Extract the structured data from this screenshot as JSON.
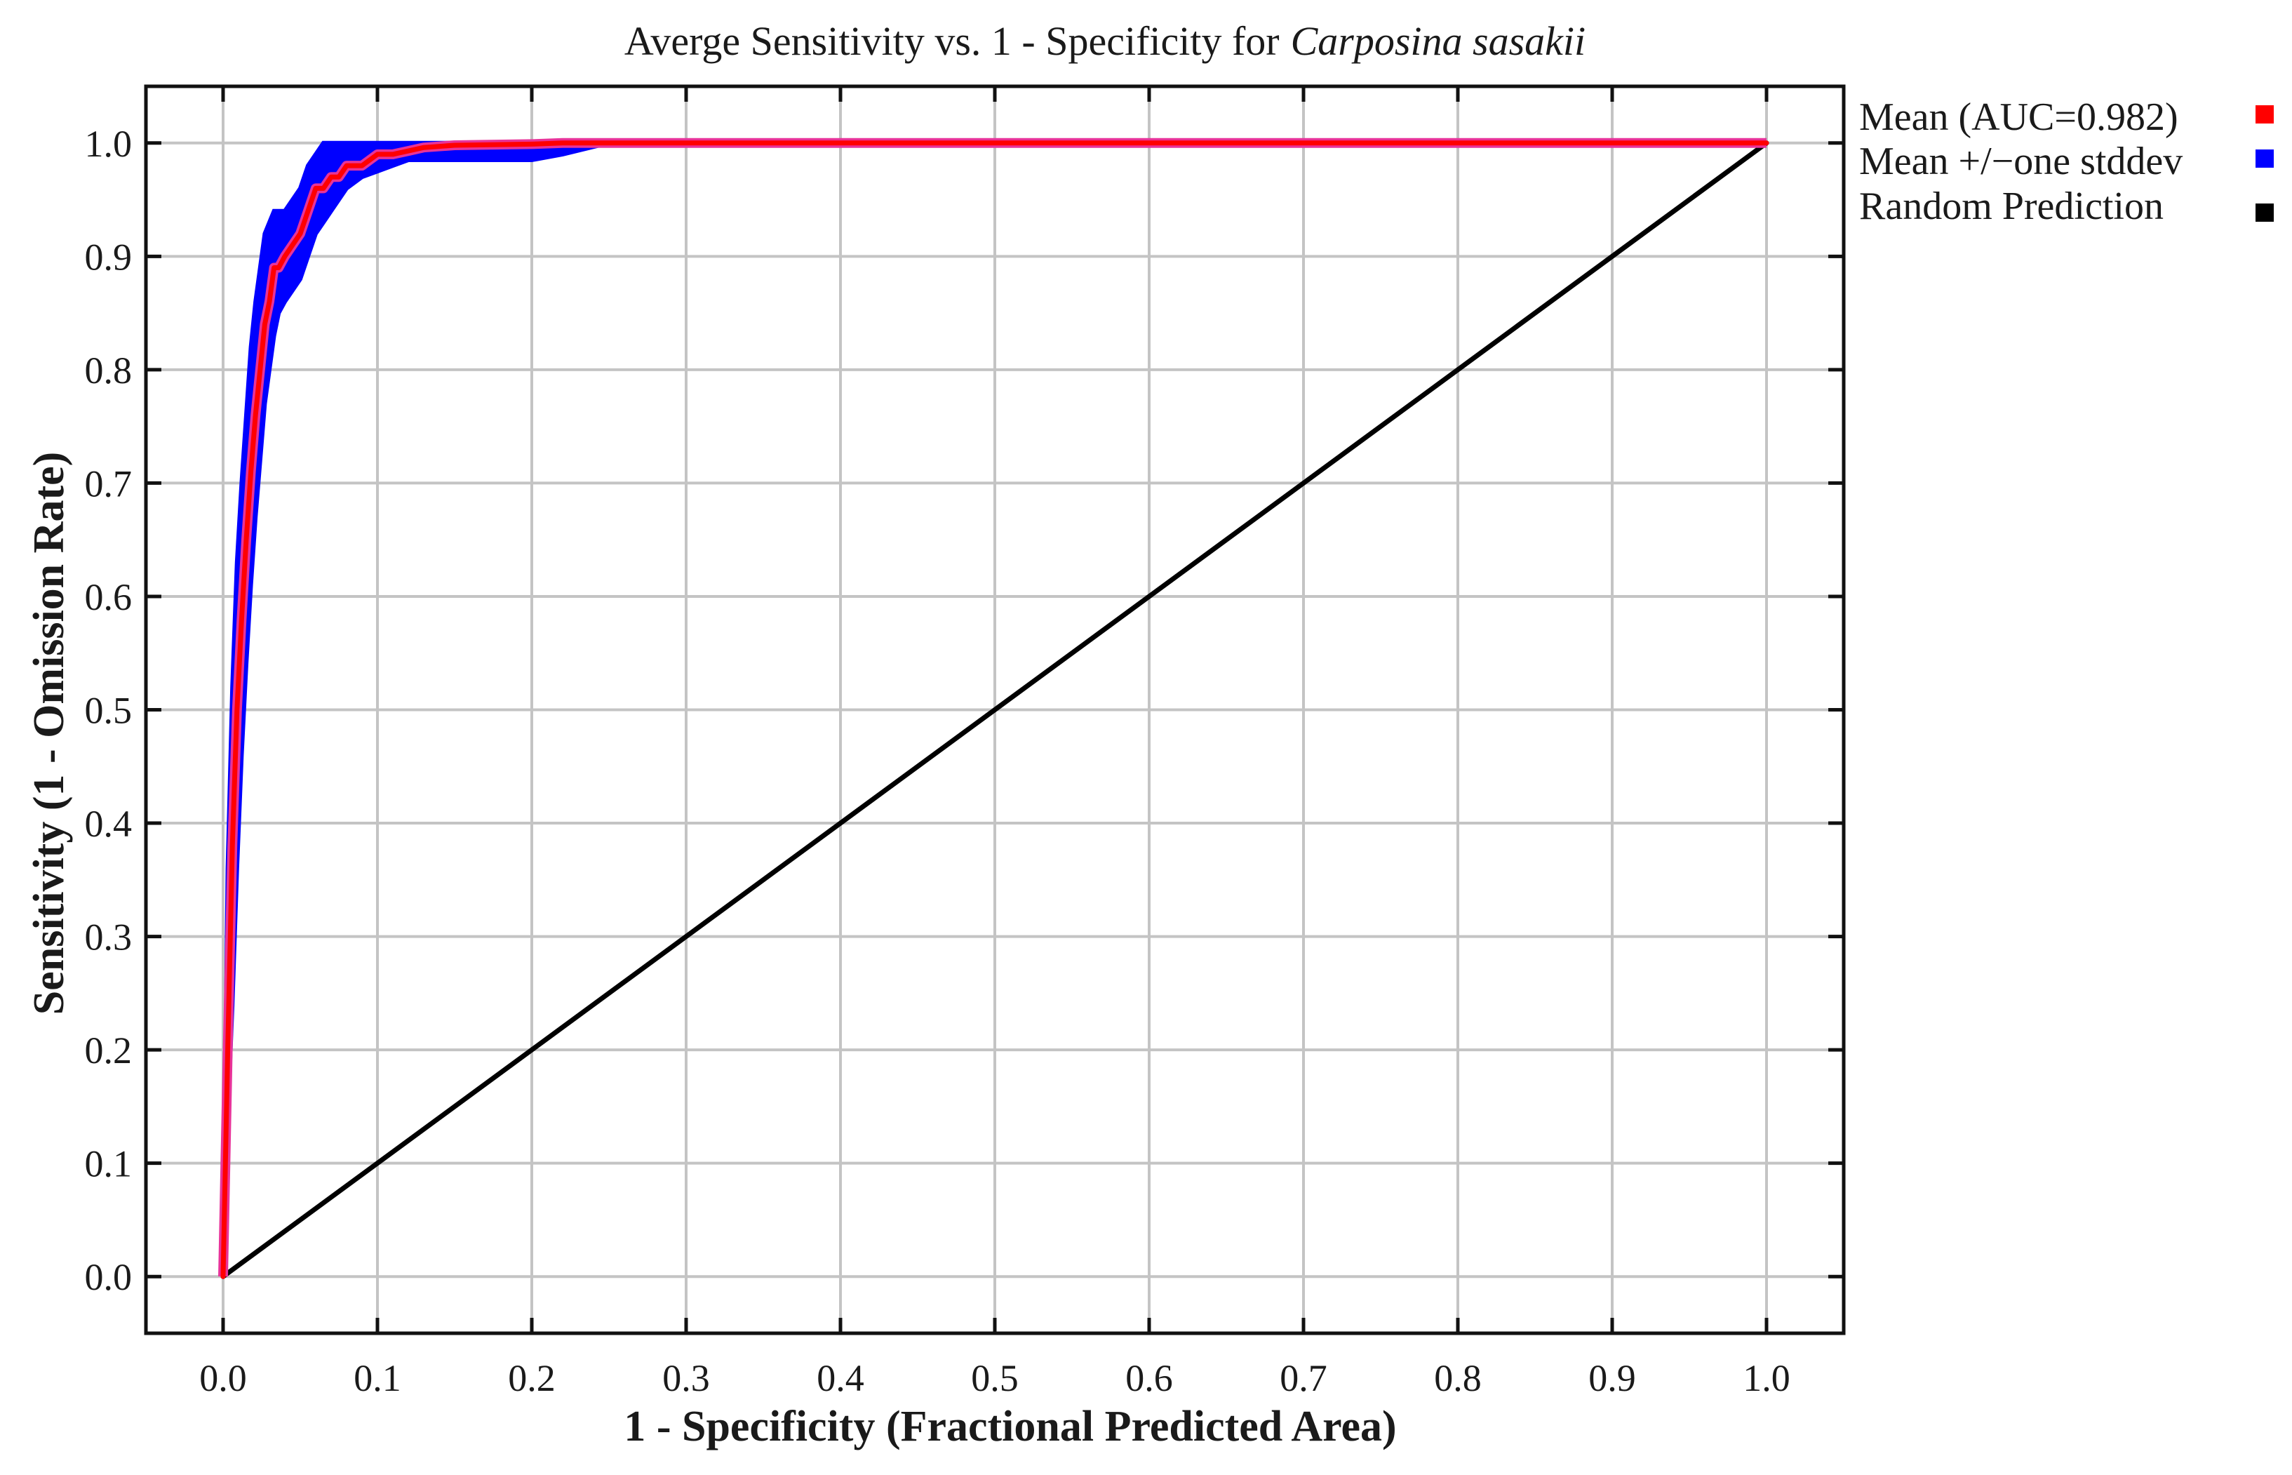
{
  "chart_data": {
    "type": "line",
    "title": "Averge Sensitivity vs. 1 - Specificity for",
    "title_italic": "Carposina sasakii",
    "xlabel": "1 - Specificity (Fractional Predicted Area)",
    "ylabel": "Sensitivity (1 - Omission Rate)",
    "xlim": [
      -0.05,
      1.05
    ],
    "ylim": [
      -0.05,
      1.05
    ],
    "x_ticks": [
      "0.0",
      "0.1",
      "0.2",
      "0.3",
      "0.4",
      "0.5",
      "0.6",
      "0.7",
      "0.8",
      "0.9",
      "1.0"
    ],
    "y_ticks": [
      "0.0",
      "0.1",
      "0.2",
      "0.3",
      "0.4",
      "0.5",
      "0.6",
      "0.7",
      "0.8",
      "0.9",
      "1.0"
    ],
    "grid": true,
    "legend_position": "right-top, outside plot",
    "series": [
      {
        "name": "Mean (AUC=0.982)",
        "color": "#ff0000",
        "x": [
          0.0,
          0.003,
          0.006,
          0.009,
          0.012,
          0.015,
          0.018,
          0.021,
          0.024,
          0.027,
          0.03,
          0.033,
          0.036,
          0.04,
          0.045,
          0.05,
          0.055,
          0.06,
          0.065,
          0.07,
          0.075,
          0.08,
          0.09,
          0.1,
          0.11,
          0.12,
          0.13,
          0.15,
          0.2,
          0.22,
          0.25,
          0.4,
          0.6,
          0.8,
          1.0
        ],
        "y": [
          0.0,
          0.2,
          0.38,
          0.5,
          0.58,
          0.65,
          0.71,
          0.76,
          0.8,
          0.84,
          0.86,
          0.89,
          0.89,
          0.9,
          0.91,
          0.92,
          0.94,
          0.96,
          0.96,
          0.97,
          0.97,
          0.98,
          0.98,
          0.99,
          0.99,
          0.993,
          0.996,
          0.998,
          0.999,
          1.0,
          1.0,
          1.0,
          1.0,
          1.0,
          1.0
        ]
      },
      {
        "name": "Mean +/−one stddev",
        "color": "#0000ff",
        "x": [
          0.0,
          0.003,
          0.006,
          0.009,
          0.012,
          0.015,
          0.018,
          0.021,
          0.024,
          0.027,
          0.03,
          0.033,
          0.036,
          0.04,
          0.045,
          0.05,
          0.055,
          0.06,
          0.065,
          0.07,
          0.075,
          0.08,
          0.09,
          0.1,
          0.11,
          0.12,
          0.13,
          0.15,
          0.2,
          0.22,
          0.25,
          0.4,
          0.6,
          0.8,
          1.0
        ],
        "upper": [
          0.0,
          0.36,
          0.52,
          0.63,
          0.7,
          0.76,
          0.82,
          0.86,
          0.89,
          0.92,
          0.93,
          0.94,
          0.94,
          0.94,
          0.95,
          0.96,
          0.98,
          0.99,
          1.0,
          1.0,
          1.0,
          1.0,
          1.0,
          1.0,
          1.0,
          1.0,
          1.0,
          1.0,
          1.0,
          1.0,
          1.0,
          1.0,
          1.0,
          1.0,
          1.0
        ],
        "lower": [
          0.0,
          0.14,
          0.24,
          0.36,
          0.46,
          0.54,
          0.61,
          0.67,
          0.72,
          0.77,
          0.8,
          0.83,
          0.85,
          0.86,
          0.87,
          0.88,
          0.9,
          0.92,
          0.93,
          0.94,
          0.95,
          0.96,
          0.97,
          0.975,
          0.98,
          0.985,
          0.985,
          0.985,
          0.985,
          0.99,
          1.0,
          1.0,
          1.0,
          1.0,
          1.0
        ]
      },
      {
        "name": "Random Prediction",
        "color": "#000000",
        "x": [
          0.0,
          1.0
        ],
        "y": [
          0.0,
          1.0
        ]
      }
    ]
  }
}
